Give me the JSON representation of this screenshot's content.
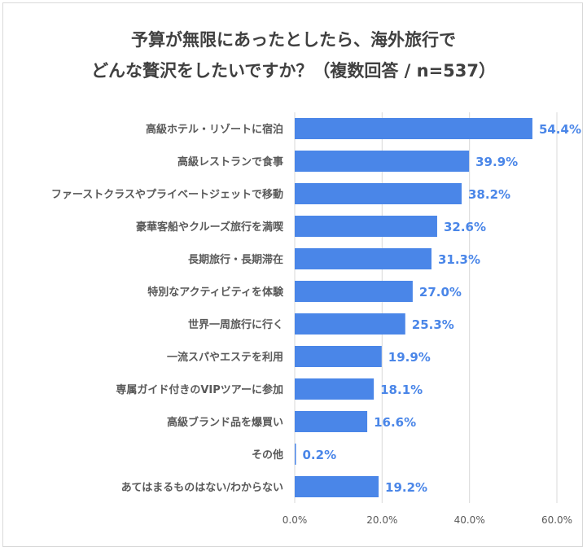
{
  "chart_data": {
    "type": "bar",
    "orientation": "horizontal",
    "title_line1": "予算が無限にあったとしたら、海外旅行で",
    "title_line2": "どんな贅沢をしたいですか？（複数回答 / n=537）",
    "categories": [
      "高級ホテル・リゾートに宿泊",
      "高級レストランで食事",
      "ファーストクラスやプライベートジェットで移動",
      "豪華客船やクルーズ旅行を満喫",
      "長期旅行・長期滞在",
      "特別なアクティビティを体験",
      "世界一周旅行に行く",
      "一流スパやエステを利用",
      "専属ガイド付きのVIPツアーに参加",
      "高級ブランド品を爆買い",
      "その他",
      "あてはまるものはない/わからない"
    ],
    "values": [
      54.4,
      39.9,
      38.2,
      32.6,
      31.3,
      27.0,
      25.3,
      19.9,
      18.1,
      16.6,
      0.2,
      19.2
    ],
    "value_labels": [
      "54.4%",
      "39.9%",
      "38.2%",
      "32.6%",
      "31.3%",
      "27.0%",
      "25.3%",
      "19.9%",
      "18.1%",
      "16.6%",
      "0.2%",
      "19.2%"
    ],
    "xlim": [
      0,
      60
    ],
    "x_ticks": [
      "0.0%",
      "20.0%",
      "40.0%",
      "60.0%"
    ],
    "x_tick_values": [
      0,
      20,
      40,
      60
    ],
    "grid": "vertical",
    "bar_color": "#4a86e8",
    "value_label_color": "#4a86e8"
  }
}
